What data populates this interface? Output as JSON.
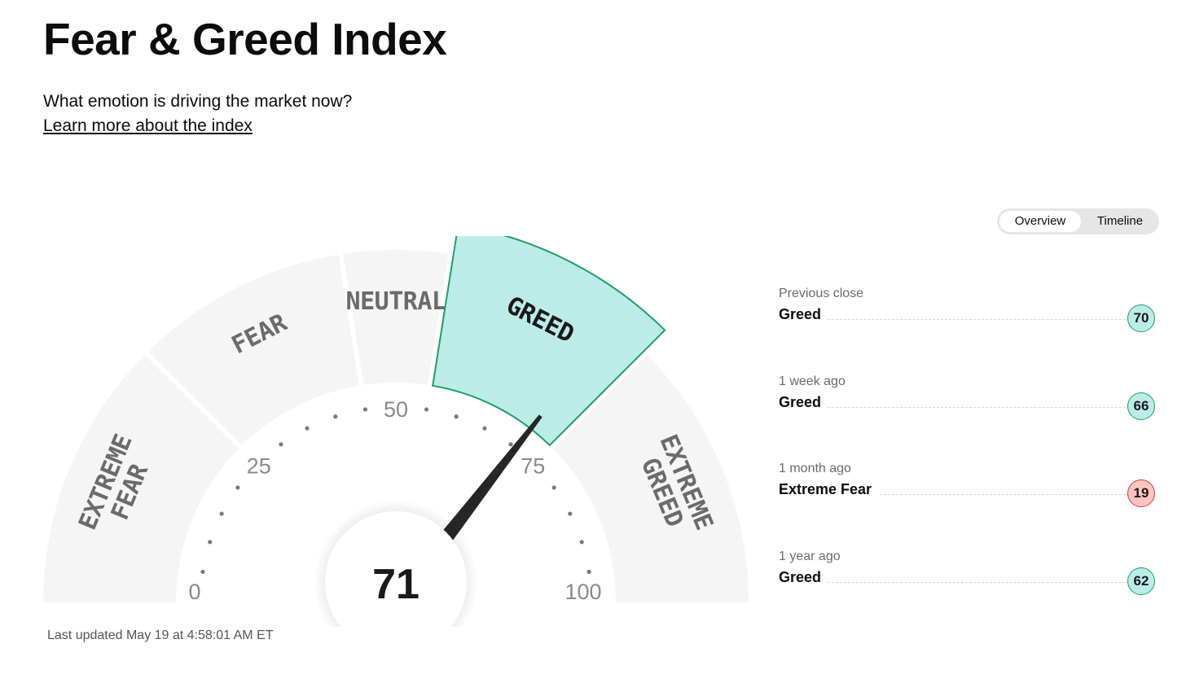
{
  "header": {
    "title": "Fear & Greed Index",
    "subtitle": "What emotion is driving the market now?",
    "learn_more": "Learn more about the index"
  },
  "view_toggle": {
    "options": [
      "Overview",
      "Timeline"
    ],
    "selected": "Overview"
  },
  "gauge": {
    "value": 71,
    "value_text": "71",
    "active_segment": "GREED",
    "segments": [
      {
        "lines": [
          "EXTREME",
          "FEAR"
        ],
        "from": 0,
        "to": 25
      },
      {
        "lines": [
          "FEAR"
        ],
        "from": 25,
        "to": 45
      },
      {
        "lines": [
          "NEUTRAL"
        ],
        "from": 45,
        "to": 55
      },
      {
        "lines": [
          "GREED"
        ],
        "from": 55,
        "to": 75
      },
      {
        "lines": [
          "EXTREME",
          "GREED"
        ],
        "from": 75,
        "to": 100
      }
    ],
    "scale_labels": [
      "0",
      "25",
      "50",
      "75",
      "100"
    ],
    "colors": {
      "segment_bg": "#f5f5f5",
      "active_fill": "#bbece7",
      "active_stroke": "#1e9e6a",
      "needle": "#262626"
    }
  },
  "last_updated": "Last updated May 19 at 4:58:01 AM ET",
  "history": [
    {
      "period": "Previous close",
      "rating": "Greed",
      "value": "70",
      "badge_fill": "#bbece7",
      "badge_border": "#1e9e6a"
    },
    {
      "period": "1 week ago",
      "rating": "Greed",
      "value": "66",
      "badge_fill": "#bbece7",
      "badge_border": "#1e9e6a"
    },
    {
      "period": "1 month ago",
      "rating": "Extreme Fear",
      "value": "19",
      "badge_fill": "#ffc4c2",
      "badge_border": "#d13a3a"
    },
    {
      "period": "1 year ago",
      "rating": "Greed",
      "value": "62",
      "badge_fill": "#bbece7",
      "badge_border": "#1e9e6a"
    }
  ]
}
